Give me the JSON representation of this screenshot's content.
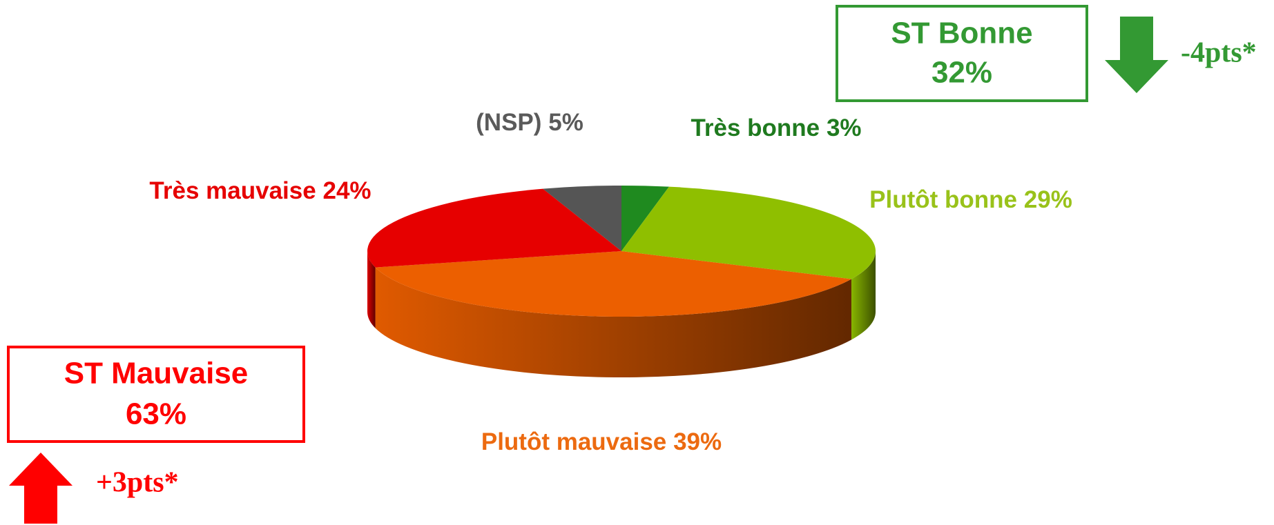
{
  "chart_data": {
    "type": "pie",
    "categories": [
      "Très bonne",
      "Plutôt bonne",
      "Plutôt mauvaise",
      "Très mauvaise",
      "(NSP)"
    ],
    "values": [
      3,
      29,
      39,
      24,
      5
    ],
    "value_labels": [
      "3%",
      "29%",
      "39%",
      "24%",
      "5%"
    ],
    "colors": [
      "#1f8a1f",
      "#8fbf00",
      "#ec5f00",
      "#e60000",
      "#555555"
    ],
    "label_colors": [
      "#1f7a1f",
      "#99c21a",
      "#ec6a10",
      "#e60000",
      "#5a5a5a"
    ],
    "annotations": [
      {
        "title": "ST Bonne",
        "value_label": "32%",
        "change": "-4pts*",
        "color": "#339933",
        "direction": "down"
      },
      {
        "title": "ST Mauvaise",
        "value_label": "63%",
        "change": "+3pts*",
        "color": "#ff0000",
        "direction": "up"
      }
    ]
  }
}
